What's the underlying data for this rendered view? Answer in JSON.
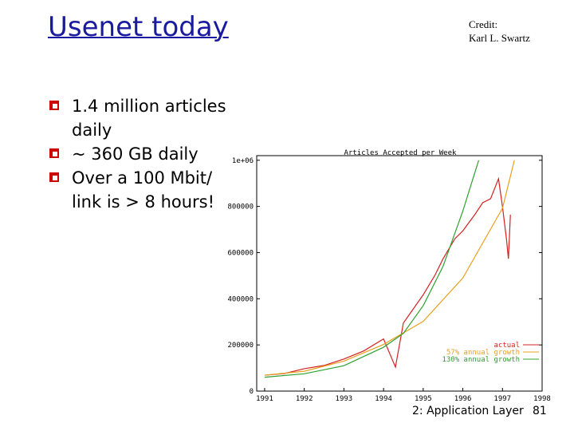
{
  "slide": {
    "title": "Usenet today",
    "credit": [
      "Credit:",
      "Karl L. Swartz"
    ],
    "bullets": [
      {
        "lines": [
          "1.4 million articles",
          "daily"
        ]
      },
      {
        "lines": [
          "~ 360 GB daily"
        ]
      },
      {
        "lines": [
          "Over a 100 Mbit/",
          "link is > 8 hours!"
        ]
      }
    ],
    "footer": {
      "section": "2: Application Layer",
      "page": "81"
    }
  },
  "chart_data": {
    "type": "line",
    "title": "Articles Accepted per Week",
    "xlim": [
      1990.8,
      1998.0
    ],
    "xticks": [
      1991,
      1992,
      1993,
      1994,
      1995,
      1996,
      1997,
      1998
    ],
    "ylim": [
      0,
      1020000
    ],
    "yticks": [
      0,
      200000,
      400000,
      600000,
      800000,
      {
        "value": 1000000,
        "label": "1e+06"
      }
    ],
    "grid": false,
    "legend": "lower right",
    "series": [
      {
        "name": "actual",
        "color": "#d42020",
        "x": [
          1991.0,
          1991.5,
          1992.0,
          1992.5,
          1993.0,
          1993.5,
          1994.0,
          1994.3,
          1994.5,
          1995.0,
          1995.3,
          1995.5,
          1995.8,
          1996.0,
          1996.3,
          1996.5,
          1996.7,
          1996.9,
          1997.0,
          1997.1,
          1997.15,
          1997.2
        ],
        "values": [
          69000,
          76000,
          97000,
          111000,
          139000,
          174000,
          226000,
          104000,
          295000,
          417000,
          503000,
          573000,
          660000,
          694000,
          764000,
          816000,
          833000,
          920000,
          799000,
          660000,
          573000,
          764000
        ]
      },
      {
        "name": "57% annual growth",
        "color": "#e8a020",
        "x": [
          1991,
          1992,
          1993,
          1994,
          1995,
          1996,
          1997,
          1997.3
        ],
        "values": [
          69000,
          86000,
          130000,
          202000,
          302000,
          490000,
          792000,
          1000000
        ]
      },
      {
        "name": "130% annual growth",
        "color": "#30a030",
        "x": [
          1991,
          1992,
          1993,
          1994,
          1994.5,
          1995,
          1995.5,
          1996,
          1996.4
        ],
        "values": [
          60000,
          75000,
          110000,
          190000,
          250000,
          370000,
          540000,
          780000,
          1000000
        ]
      }
    ]
  }
}
